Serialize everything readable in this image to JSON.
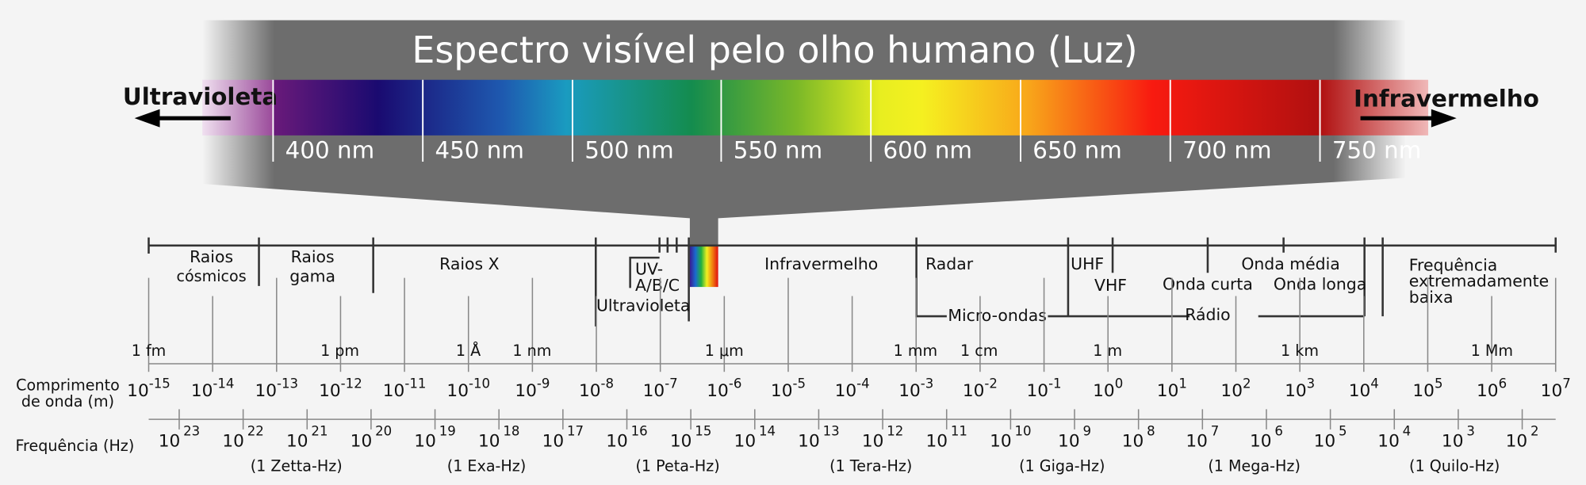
{
  "title": "Espectro visível pelo olho humano (Luz)",
  "left_label": "Ultravioleta",
  "right_label": "Infravermelho",
  "nm_labels": [
    "400 nm",
    "450 nm",
    "500 nm",
    "550 nm",
    "600 nm",
    "650 nm",
    "700 nm",
    "750 nm"
  ],
  "bands": [
    [
      "Raios",
      "cósmicos"
    ],
    [
      "Raios",
      "gama"
    ],
    [
      "Raios X"
    ],
    [
      "UV-",
      "A/B/C"
    ],
    [
      "Ultravioleta"
    ],
    [
      "Infravermelho"
    ],
    [
      "Radar"
    ],
    [
      "Micro-ondas"
    ],
    [
      "UHF"
    ],
    [
      "VHF"
    ],
    [
      "Onda curta"
    ],
    [
      "Onda média"
    ],
    [
      "Onda longa"
    ],
    [
      "Rádio"
    ],
    [
      "Frequência",
      "extremadamente",
      "baixa"
    ]
  ],
  "units": [
    "1 fm",
    "1 pm",
    "1 Å",
    "1 nm",
    "1 μm",
    "1 mm",
    "1 cm",
    "1 m",
    "1 km",
    "1 Mm"
  ],
  "wavelength_axis": {
    "title": [
      "Comprimento",
      "de onda (m)"
    ],
    "base": "10",
    "exponents": [
      -15,
      -14,
      -13,
      -12,
      -11,
      -10,
      -9,
      -8,
      -7,
      -6,
      -5,
      -4,
      -3,
      -2,
      -1,
      0,
      1,
      2,
      3,
      4,
      5,
      6,
      7
    ]
  },
  "frequency_axis": {
    "title": "Frequência (Hz)",
    "base": "10",
    "exponents": [
      23,
      22,
      21,
      20,
      19,
      18,
      17,
      16,
      15,
      14,
      13,
      12,
      11,
      10,
      9,
      8,
      7,
      6,
      5,
      4,
      3,
      2
    ],
    "names": [
      "(1 Zetta-Hz)",
      "(1 Exa-Hz)",
      "(1 Peta-Hz)",
      "(1 Tera-Hz)",
      "(1 Giga-Hz)",
      "(1 Mega-Hz)",
      "(1 Quilo-Hz)"
    ]
  }
}
